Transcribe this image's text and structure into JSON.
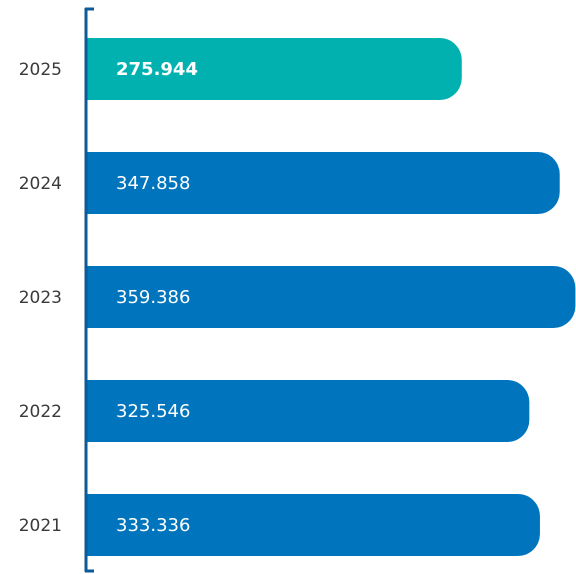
{
  "chart_data": {
    "type": "bar",
    "orientation": "horizontal",
    "categories": [
      "2025",
      "2024",
      "2023",
      "2022",
      "2021"
    ],
    "values": [
      275.944,
      347.858,
      359.386,
      325.546,
      333.336
    ],
    "value_labels": [
      "275.944",
      "347.858",
      "359.386",
      "325.546",
      "333.336"
    ],
    "highlight_category": "2025",
    "colors": {
      "highlight": "#00b1b0",
      "default": "#0074bc",
      "axis": "#0e5a98",
      "label_text": "#ffffff",
      "category_text": "#3a3a3a"
    },
    "title": "",
    "xlabel": "",
    "ylabel": "",
    "grid": false,
    "legend": "none"
  }
}
